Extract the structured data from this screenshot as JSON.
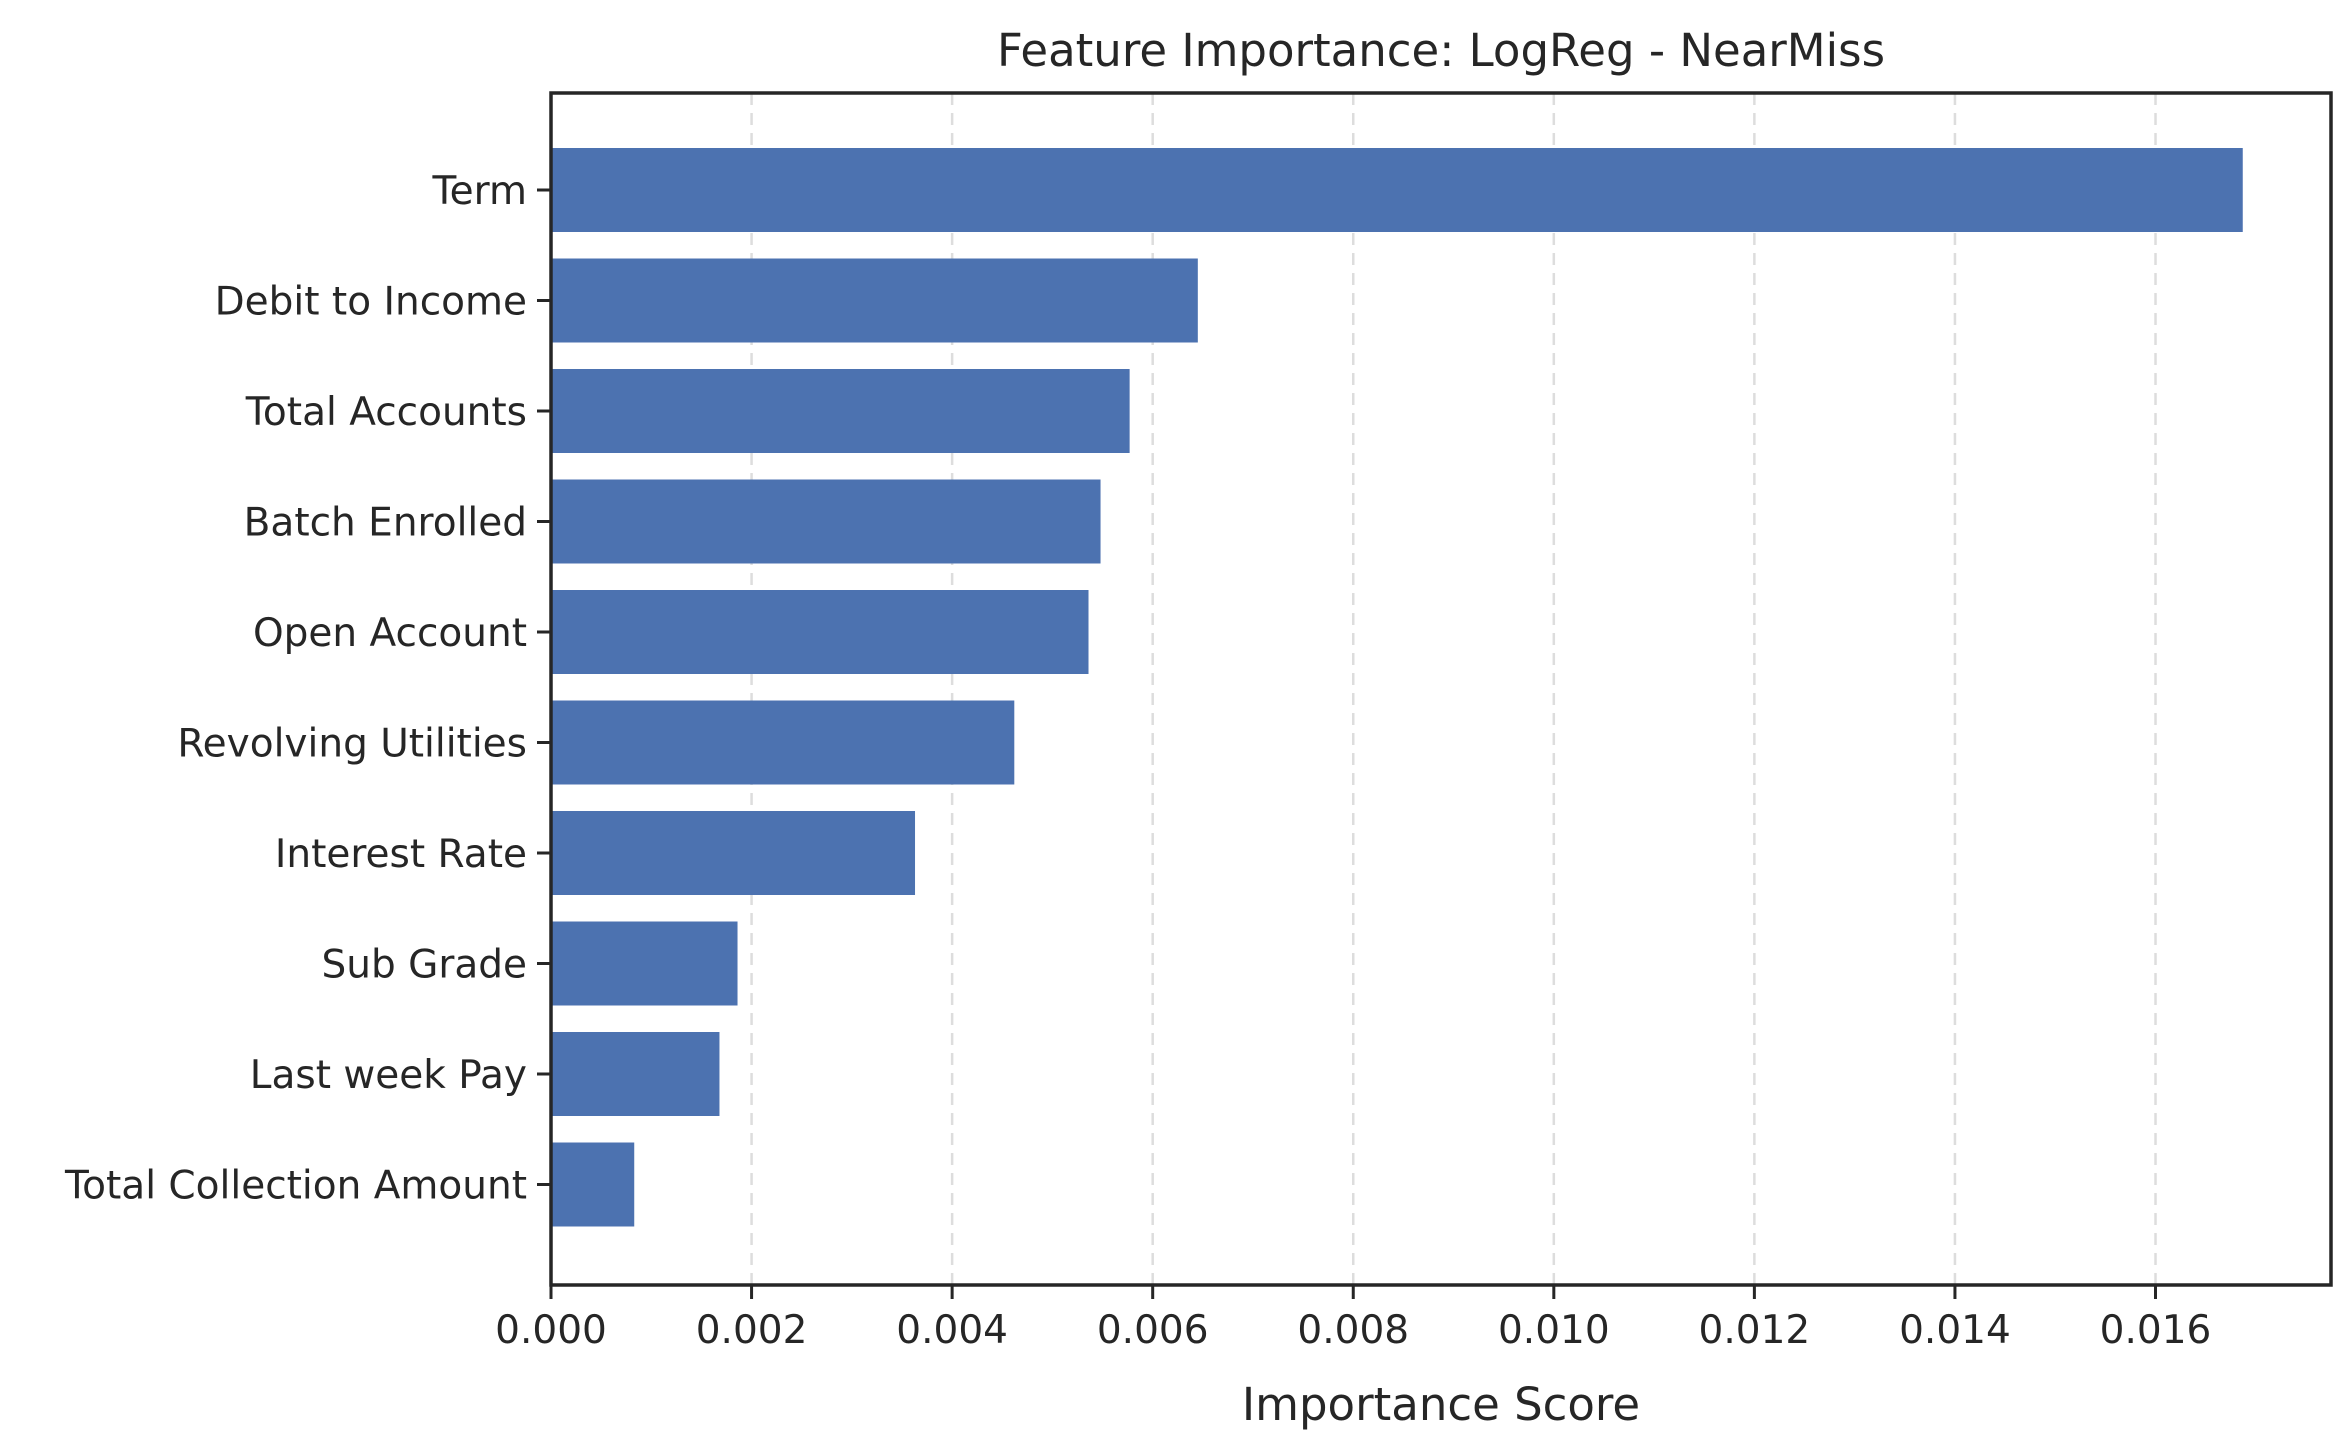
{
  "chart_data": {
    "type": "bar",
    "orientation": "horizontal",
    "title": "Feature Importance: LogReg - NearMiss",
    "xlabel": "Importance Score",
    "ylabel": "",
    "categories": [
      "Term",
      "Debit to Income",
      "Total Accounts",
      "Batch Enrolled",
      "Open Account",
      "Revolving Utilities",
      "Interest Rate",
      "Sub Grade",
      "Last week Pay",
      "Total Collection Amount"
    ],
    "values": [
      0.01687,
      0.00645,
      0.00577,
      0.00548,
      0.00536,
      0.00462,
      0.00363,
      0.00186,
      0.00168,
      0.00083
    ],
    "xlim": [
      0,
      0.01775
    ],
    "xticks": [
      0.0,
      0.002,
      0.004,
      0.006,
      0.008,
      0.01,
      0.012,
      0.014,
      0.016
    ],
    "xtick_labels": [
      "0.000",
      "0.002",
      "0.004",
      "0.006",
      "0.008",
      "0.010",
      "0.012",
      "0.014",
      "0.016"
    ],
    "grid": "x, dashed",
    "legend": "none",
    "bar_color": "#4c72b0"
  }
}
